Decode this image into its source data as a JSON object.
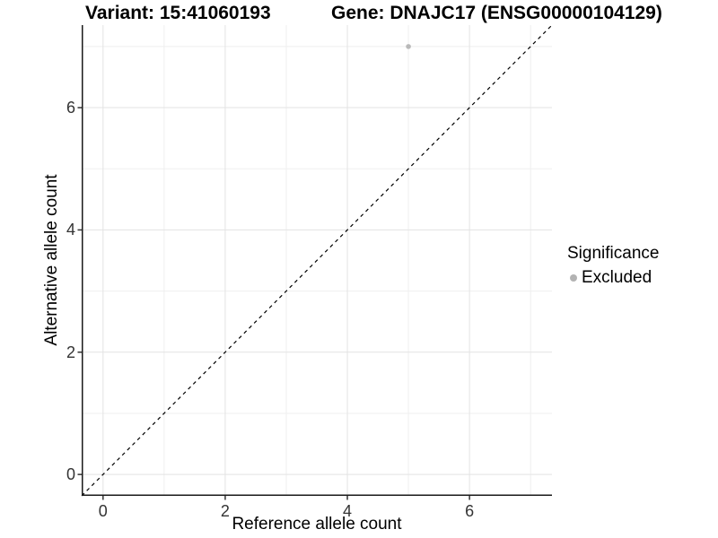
{
  "header": {
    "variant_title": "Variant: 15:41060193",
    "gene_title": "Gene: DNAJC17 (ENSG00000104129)"
  },
  "chart_data": {
    "type": "scatter",
    "xlabel": "Reference allele count",
    "ylabel": "Alternative allele count",
    "xlim": [
      -0.35,
      7.35
    ],
    "ylim": [
      -0.35,
      7.35
    ],
    "x_ticks": [
      0,
      2,
      4,
      6
    ],
    "y_ticks": [
      0,
      2,
      4,
      6
    ],
    "x_minor_gridlines": [
      1,
      3,
      5,
      7
    ],
    "y_minor_gridlines": [
      1,
      3,
      5,
      7
    ],
    "points": [
      {
        "x": 5,
        "y": 7,
        "series": "Excluded"
      }
    ],
    "series": [
      {
        "name": "Excluded",
        "color": "#b9b9b9",
        "point_radius": 2.8
      }
    ],
    "identity_line": {
      "slope": 1,
      "intercept": 0,
      "style": "dashed",
      "color": "#000000"
    },
    "legend": {
      "position": "right",
      "title": "Significance",
      "items": [
        {
          "label": "Excluded",
          "color": "#b3b3b3"
        }
      ]
    },
    "colors": {
      "background": "#ffffff",
      "major_grid": "#e3e3e3",
      "minor_grid": "#efefef",
      "axis_line": "#1a1a1a",
      "tick_mark": "#333333"
    }
  }
}
